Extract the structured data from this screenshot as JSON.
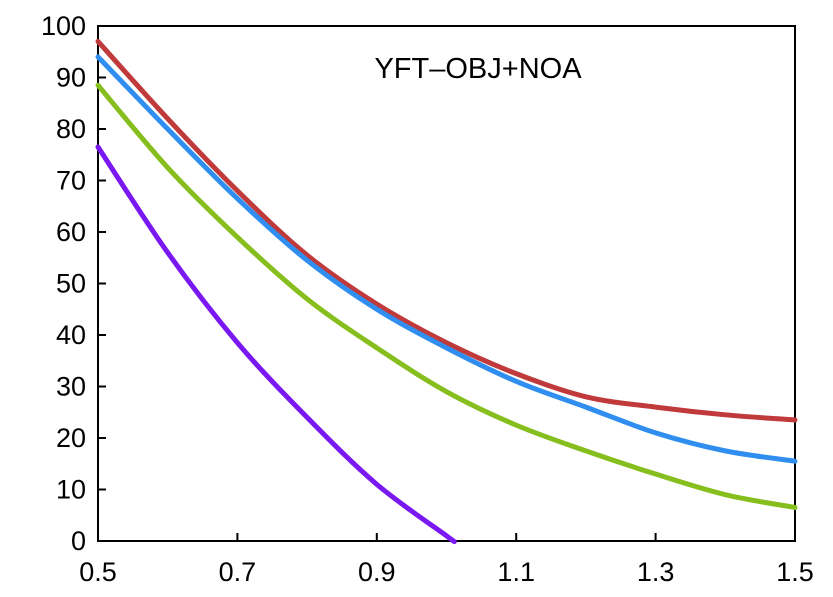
{
  "chart_data": {
    "type": "line",
    "title": "",
    "xlabel": "",
    "ylabel": "",
    "annotation": "YFT–OBJ+NOA",
    "xlim": [
      0.5,
      1.5
    ],
    "ylim": [
      0,
      100
    ],
    "x_ticks": [
      "0.5",
      "0.7",
      "0.9",
      "1.1",
      "1.3",
      "1.5"
    ],
    "y_ticks": [
      "0",
      "10",
      "20",
      "30",
      "40",
      "50",
      "60",
      "70",
      "80",
      "90",
      "100"
    ],
    "grid": false,
    "legend": "none",
    "series": [
      {
        "color": "#C0393B",
        "points": [
          [
            0.5,
            97
          ],
          [
            0.6,
            82
          ],
          [
            0.7,
            68
          ],
          [
            0.8,
            55.5
          ],
          [
            0.9,
            46
          ],
          [
            1.0,
            38.5
          ],
          [
            1.1,
            32.5
          ],
          [
            1.2,
            28
          ],
          [
            1.3,
            26
          ],
          [
            1.4,
            24.5
          ],
          [
            1.5,
            23.5
          ]
        ]
      },
      {
        "color": "#2F8EEF",
        "points": [
          [
            0.5,
            94
          ],
          [
            0.6,
            80
          ],
          [
            0.7,
            66.5
          ],
          [
            0.8,
            54.5
          ],
          [
            0.9,
            45
          ],
          [
            1.0,
            37.5
          ],
          [
            1.1,
            31
          ],
          [
            1.2,
            26
          ],
          [
            1.3,
            21
          ],
          [
            1.4,
            17.5
          ],
          [
            1.5,
            15.5
          ]
        ]
      },
      {
        "color": "#86BE1E",
        "points": [
          [
            0.5,
            88.5
          ],
          [
            0.6,
            72.5
          ],
          [
            0.7,
            59
          ],
          [
            0.8,
            47
          ],
          [
            0.9,
            37.5
          ],
          [
            1.0,
            29
          ],
          [
            1.1,
            22.5
          ],
          [
            1.2,
            17.5
          ],
          [
            1.3,
            13
          ],
          [
            1.4,
            9
          ],
          [
            1.5,
            6.5
          ]
        ]
      },
      {
        "color": "#7A18F2",
        "points": [
          [
            0.5,
            76.5
          ],
          [
            0.6,
            56
          ],
          [
            0.7,
            38.5
          ],
          [
            0.8,
            24
          ],
          [
            0.9,
            11
          ],
          [
            1.0,
            1
          ],
          [
            1.01,
            0
          ]
        ]
      }
    ]
  }
}
